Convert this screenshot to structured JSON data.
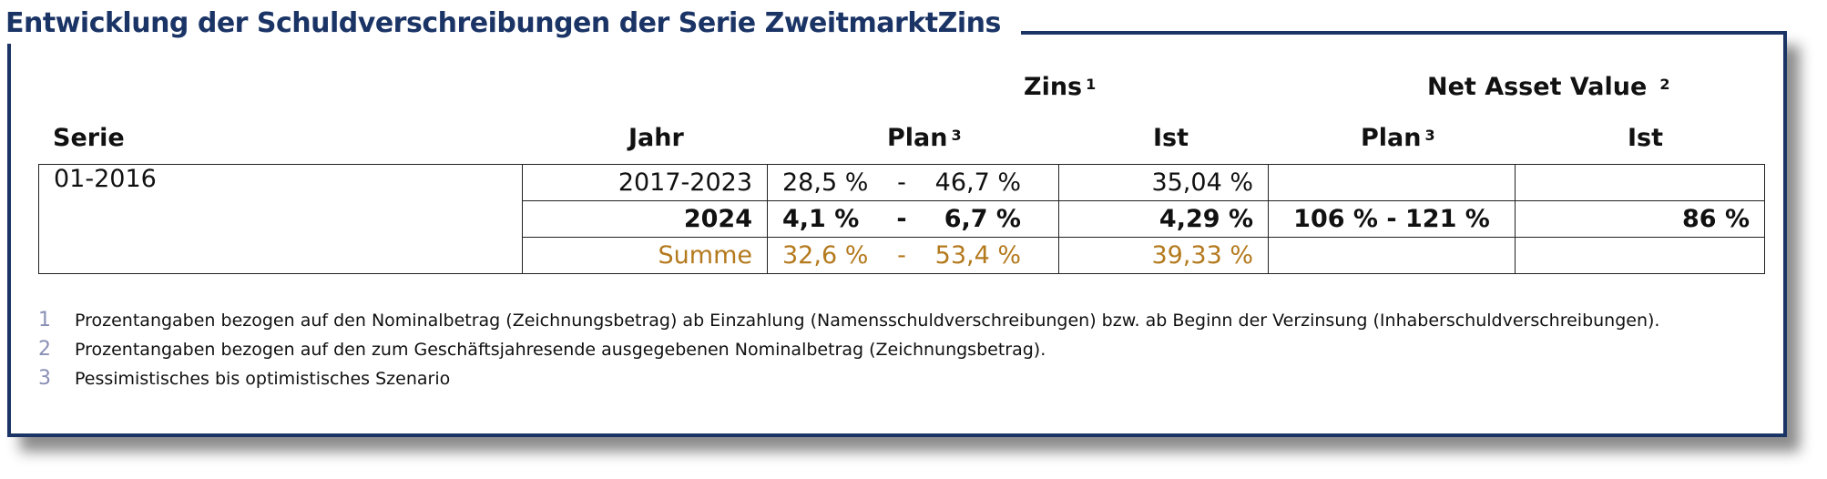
{
  "title": "Entwicklung der Schuldverschreibungen der Serie ZweitmarktZins",
  "group_headers": {
    "zins": "Zins",
    "zins_sup": "1",
    "nav": "Net Asset Value",
    "nav_sup": "2"
  },
  "columns": {
    "serie": "Serie",
    "jahr": "Jahr",
    "plan": "Plan",
    "plan_sup": "3",
    "ist": "Ist",
    "nav_plan": "Plan",
    "nav_plan_sup": "3",
    "nav_ist": "Ist"
  },
  "table": {
    "serie": "01-2016",
    "rows": [
      {
        "jahr": "2017-2023",
        "plan_low": "28,5 %",
        "plan_sep": "-",
        "plan_high": "46,7 %",
        "ist": "35,04 %",
        "nav_plan": "",
        "nav_ist": ""
      },
      {
        "jahr": "2024",
        "plan_low": "4,1 %",
        "plan_sep": "-",
        "plan_high": "6,7 %",
        "ist": "4,29 %",
        "nav_plan": "106 % - 121 %",
        "nav_ist": "86 %"
      },
      {
        "jahr": "Summe",
        "plan_low": "32,6 %",
        "plan_sep": "-",
        "plan_high": "53,4 %",
        "ist": "39,33 %",
        "nav_plan": "",
        "nav_ist": ""
      }
    ]
  },
  "footnotes": [
    {
      "num": "1",
      "text": "Prozentangaben bezogen auf den Nominalbetrag (Zeichnungsbetrag) ab Einzahlung (Namensschuldverschreibungen) bzw. ab Beginn der Verzinsung (Inhaberschuldverschreibungen)."
    },
    {
      "num": "2",
      "text": "Prozentangaben bezogen auf den zum Geschäftsjahresende ausgegebenen Nominalbetrag (Zeichnungsbetrag)."
    },
    {
      "num": "3",
      "text": "Pessimistisches bis optimistisches Szenario"
    }
  ],
  "colors": {
    "frame": "#1b3466",
    "summe": "#b47a1e",
    "footnote_number": "#8a90b5"
  }
}
